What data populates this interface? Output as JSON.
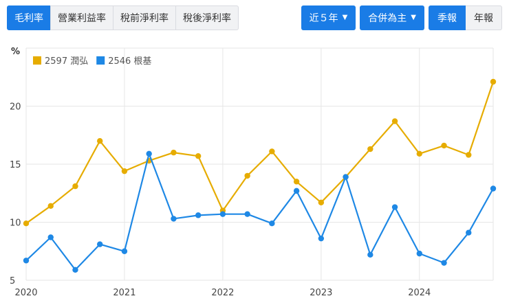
{
  "tabs": [
    {
      "label": "毛利率",
      "active": true
    },
    {
      "label": "營業利益率",
      "active": false
    },
    {
      "label": "稅前淨利率",
      "active": false
    },
    {
      "label": "稅後淨利率",
      "active": false
    }
  ],
  "controls": {
    "range_label": "近５年",
    "consolidation_label": "合併為主",
    "period_options": [
      {
        "label": "季報",
        "active": true
      },
      {
        "label": "年報",
        "active": false
      }
    ]
  },
  "colors": {
    "accent": "#1a7ce6",
    "series_1": "#e6ac00",
    "series_2": "#1e88e5"
  },
  "chart_data": {
    "type": "line",
    "ylabel": "%",
    "ylim": [
      5,
      25
    ],
    "yticks": [
      5,
      10,
      15,
      20
    ],
    "xlim": [
      2020.0,
      2024.75
    ],
    "xticks": [
      2020,
      2021,
      2022,
      2023,
      2024
    ],
    "grid": true,
    "legend": "top-left",
    "x": [
      2020.0,
      2020.25,
      2020.5,
      2020.75,
      2021.0,
      2021.25,
      2021.5,
      2021.75,
      2022.0,
      2022.25,
      2022.5,
      2022.75,
      2023.0,
      2023.25,
      2023.5,
      2023.75,
      2024.0,
      2024.25,
      2024.5,
      2024.75
    ],
    "series": [
      {
        "name": "2597 潤弘",
        "values": [
          9.9,
          11.4,
          13.1,
          17.0,
          14.4,
          15.3,
          16.0,
          15.7,
          11.0,
          14.0,
          16.1,
          13.5,
          11.7,
          13.9,
          16.3,
          18.7,
          15.9,
          16.6,
          15.8,
          22.1
        ]
      },
      {
        "name": "2546 根基",
        "values": [
          6.7,
          8.7,
          5.9,
          8.1,
          7.5,
          15.9,
          10.3,
          10.6,
          10.7,
          10.7,
          9.9,
          12.7,
          8.6,
          13.9,
          7.2,
          11.3,
          7.3,
          6.5,
          9.1,
          12.9
        ]
      }
    ]
  }
}
